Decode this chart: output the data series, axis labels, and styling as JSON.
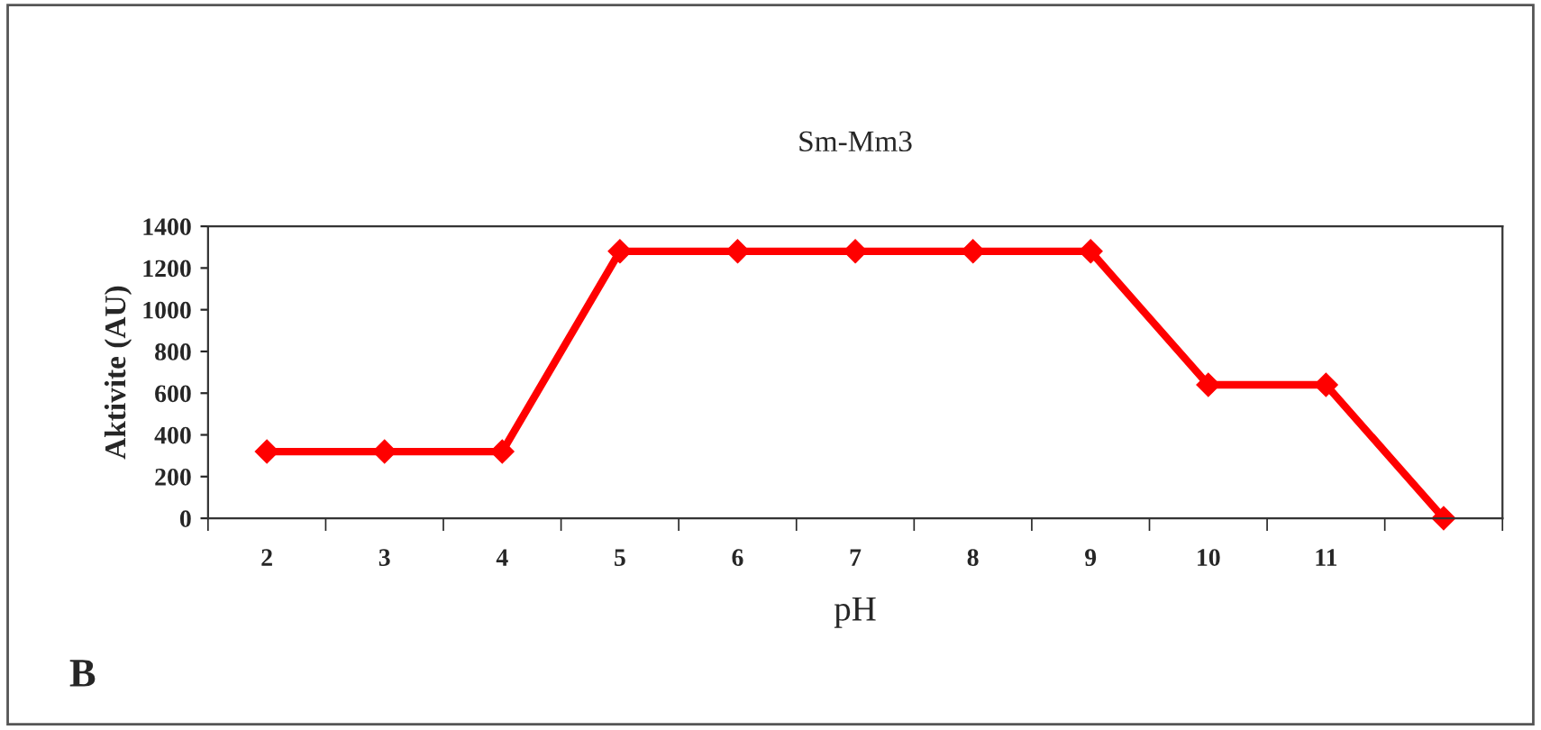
{
  "chart_data": {
    "type": "line",
    "title": "Sm-Mm3",
    "xlabel": "pH",
    "ylabel": "Aktivite (AU)",
    "categories": [
      "2",
      "3",
      "4",
      "5",
      "6",
      "7",
      "8",
      "9",
      "10",
      "11",
      null
    ],
    "series": [
      {
        "color": "#ff0000",
        "values": [
          320,
          320,
          320,
          1280,
          1280,
          1280,
          1280,
          1280,
          640,
          640,
          0
        ]
      }
    ],
    "ylim": [
      0,
      1400
    ],
    "yticks": [
      0,
      200,
      400,
      600,
      800,
      1000,
      1200,
      1400
    ],
    "grid": false,
    "legend": false,
    "marker": "diamond",
    "line_style": "solid",
    "annotations": [
      "B"
    ]
  }
}
